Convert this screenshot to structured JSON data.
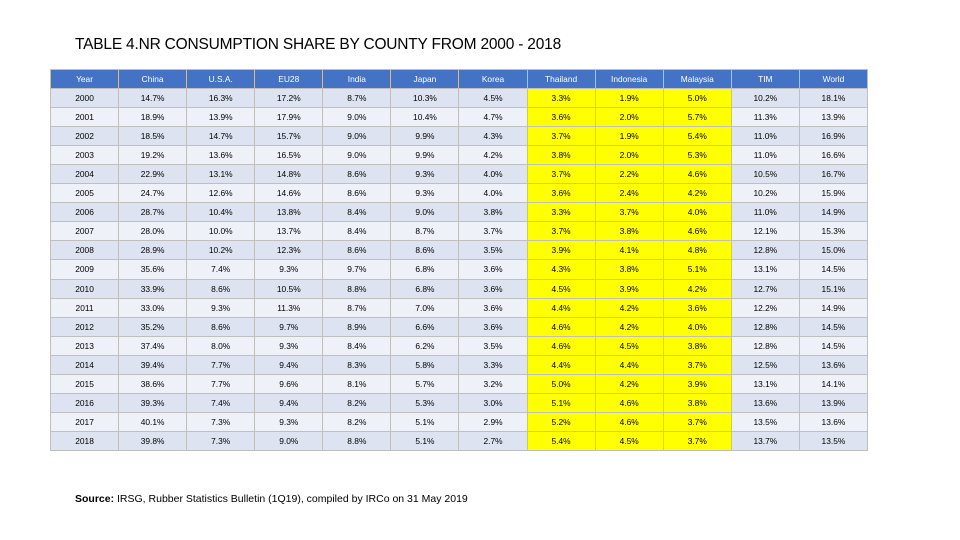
{
  "title": "TABLE 4.NR CONSUMPTION SHARE BY COUNTY FROM 2000 - 2018",
  "table": {
    "headers": [
      "Year",
      "China",
      "U.S.A.",
      "EU28",
      "India",
      "Japan",
      "Korea",
      "Thailand",
      "Indonesia",
      "Malaysia",
      "TIM",
      "World"
    ],
    "highlight_columns": [
      "Thailand",
      "Indonesia",
      "Malaysia"
    ],
    "highlight_color": "#ffff00",
    "header_color": "#4472c4",
    "rows": [
      [
        "2000",
        "14.7%",
        "16.3%",
        "17.2%",
        "8.7%",
        "10.3%",
        "4.5%",
        "3.3%",
        "1.9%",
        "5.0%",
        "10.2%",
        "18.1%"
      ],
      [
        "2001",
        "18.9%",
        "13.9%",
        "17.9%",
        "9.0%",
        "10.4%",
        "4.7%",
        "3.6%",
        "2.0%",
        "5.7%",
        "11.3%",
        "13.9%"
      ],
      [
        "2002",
        "18.5%",
        "14.7%",
        "15.7%",
        "9.0%",
        "9.9%",
        "4.3%",
        "3.7%",
        "1.9%",
        "5.4%",
        "11.0%",
        "16.9%"
      ],
      [
        "2003",
        "19.2%",
        "13.6%",
        "16.5%",
        "9.0%",
        "9.9%",
        "4.2%",
        "3.8%",
        "2.0%",
        "5.3%",
        "11.0%",
        "16.6%"
      ],
      [
        "2004",
        "22.9%",
        "13.1%",
        "14.8%",
        "8.6%",
        "9.3%",
        "4.0%",
        "3.7%",
        "2.2%",
        "4.6%",
        "10.5%",
        "16.7%"
      ],
      [
        "2005",
        "24.7%",
        "12.6%",
        "14.6%",
        "8.6%",
        "9.3%",
        "4.0%",
        "3.6%",
        "2.4%",
        "4.2%",
        "10.2%",
        "15.9%"
      ],
      [
        "2006",
        "28.7%",
        "10.4%",
        "13.8%",
        "8.4%",
        "9.0%",
        "3.8%",
        "3.3%",
        "3.7%",
        "4.0%",
        "11.0%",
        "14.9%"
      ],
      [
        "2007",
        "28.0%",
        "10.0%",
        "13.7%",
        "8.4%",
        "8.7%",
        "3.7%",
        "3.7%",
        "3.8%",
        "4.6%",
        "12.1%",
        "15.3%"
      ],
      [
        "2008",
        "28.9%",
        "10.2%",
        "12.3%",
        "8.6%",
        "8.6%",
        "3.5%",
        "3.9%",
        "4.1%",
        "4.8%",
        "12.8%",
        "15.0%"
      ],
      [
        "2009",
        "35.6%",
        "7.4%",
        "9.3%",
        "9.7%",
        "6.8%",
        "3.6%",
        "4.3%",
        "3.8%",
        "5.1%",
        "13.1%",
        "14.5%"
      ],
      [
        "2010",
        "33.9%",
        "8.6%",
        "10.5%",
        "8.8%",
        "6.8%",
        "3.6%",
        "4.5%",
        "3.9%",
        "4.2%",
        "12.7%",
        "15.1%"
      ],
      [
        "2011",
        "33.0%",
        "9.3%",
        "11.3%",
        "8.7%",
        "7.0%",
        "3.6%",
        "4.4%",
        "4.2%",
        "3.6%",
        "12.2%",
        "14.9%"
      ],
      [
        "2012",
        "35.2%",
        "8.6%",
        "9.7%",
        "8.9%",
        "6.6%",
        "3.6%",
        "4.6%",
        "4.2%",
        "4.0%",
        "12.8%",
        "14.5%"
      ],
      [
        "2013",
        "37.4%",
        "8.0%",
        "9.3%",
        "8.4%",
        "6.2%",
        "3.5%",
        "4.6%",
        "4.5%",
        "3.8%",
        "12.8%",
        "14.5%"
      ],
      [
        "2014",
        "39.4%",
        "7.7%",
        "9.4%",
        "8.3%",
        "5.8%",
        "3.3%",
        "4.4%",
        "4.4%",
        "3.7%",
        "12.5%",
        "13.6%"
      ],
      [
        "2015",
        "38.6%",
        "7.7%",
        "9.6%",
        "8.1%",
        "5.7%",
        "3.2%",
        "5.0%",
        "4.2%",
        "3.9%",
        "13.1%",
        "14.1%"
      ],
      [
        "2016",
        "39.3%",
        "7.4%",
        "9.4%",
        "8.2%",
        "5.3%",
        "3.0%",
        "5.1%",
        "4.6%",
        "3.8%",
        "13.6%",
        "13.9%"
      ],
      [
        "2017",
        "40.1%",
        "7.3%",
        "9.3%",
        "8.2%",
        "5.1%",
        "2.9%",
        "5.2%",
        "4.6%",
        "3.7%",
        "13.5%",
        "13.6%"
      ],
      [
        "2018",
        "39.8%",
        "7.3%",
        "9.0%",
        "8.8%",
        "5.1%",
        "2.7%",
        "5.4%",
        "4.5%",
        "3.7%",
        "13.7%",
        "13.5%"
      ]
    ]
  },
  "source": {
    "label": "Source:",
    "text": " IRSG, Rubber Statistics Bulletin (1Q19), compiled by IRCo on 31 May 2019"
  }
}
